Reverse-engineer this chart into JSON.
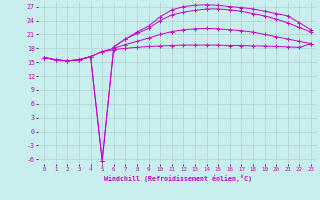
{
  "xlabel": "Windchill (Refroidissement éolien,°C)",
  "bg_color": "#c8eeee",
  "grid_color": "#b0d0d0",
  "line_color": "#cc00cc",
  "x": [
    0,
    1,
    2,
    3,
    4,
    5,
    6,
    7,
    8,
    9,
    10,
    11,
    12,
    13,
    14,
    15,
    16,
    17,
    18,
    19,
    20,
    21,
    22,
    23
  ],
  "series1": [
    16.0,
    15.5,
    15.3,
    15.5,
    16.2,
    17.3,
    17.7,
    18.0,
    18.2,
    18.4,
    18.5,
    18.6,
    18.7,
    18.7,
    18.7,
    18.7,
    18.6,
    18.6,
    18.5,
    18.5,
    18.4,
    18.3,
    18.2,
    19.0
  ],
  "series2": [
    16.0,
    15.5,
    15.3,
    15.5,
    16.2,
    17.3,
    18.0,
    18.8,
    19.5,
    20.2,
    21.0,
    21.6,
    22.0,
    22.2,
    22.3,
    22.2,
    22.0,
    21.8,
    21.5,
    21.0,
    20.5,
    20.0,
    19.5,
    19.0
  ],
  "series3": [
    16.0,
    15.5,
    15.3,
    15.5,
    16.2,
    -6.3,
    18.3,
    20.0,
    21.2,
    22.3,
    24.0,
    25.2,
    25.8,
    26.2,
    26.5,
    26.5,
    26.3,
    26.0,
    25.5,
    25.0,
    24.3,
    23.5,
    22.5,
    21.5
  ],
  "series4": [
    16.0,
    15.5,
    15.3,
    15.5,
    16.2,
    -6.3,
    18.3,
    20.0,
    21.5,
    22.8,
    24.8,
    26.3,
    27.0,
    27.3,
    27.4,
    27.3,
    27.0,
    26.8,
    26.5,
    26.0,
    25.5,
    25.0,
    23.5,
    22.0
  ],
  "ylim_min": -7,
  "ylim_max": 28,
  "yticks": [
    -6,
    -3,
    0,
    3,
    6,
    9,
    12,
    15,
    18,
    21,
    24,
    27
  ]
}
